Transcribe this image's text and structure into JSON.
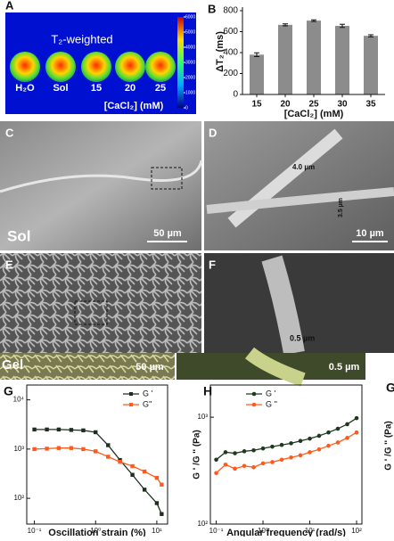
{
  "chart_data": [
    {
      "type": "colorbar",
      "label": "A",
      "title": "T₂-weighted",
      "categories": [
        "H₂O",
        "Sol",
        "15",
        "20",
        "25"
      ],
      "xlabel": "[CaCl₂] (mM)",
      "ylim": [
        0,
        6000
      ],
      "yticks": [
        0,
        1000,
        2000,
        3000,
        4000,
        5000,
        6000
      ]
    },
    {
      "type": "bar",
      "label": "B",
      "ylabel": "ΔT₂ (ms)",
      "xlabel": "[CaCl₂] (mM)",
      "categories": [
        "15",
        "20",
        "25",
        "30",
        "35"
      ],
      "values": [
        380,
        665,
        705,
        655,
        560
      ],
      "errors": [
        18,
        10,
        8,
        15,
        10
      ],
      "color": "#8c8c8c",
      "ylim": [
        0,
        800
      ],
      "yticks": [
        0,
        200,
        400,
        600,
        800
      ]
    },
    {
      "type": "line",
      "label": "G",
      "xlabel": "Oscillation strain (%)",
      "log_x": true,
      "log_y": true,
      "x": [
        0.1,
        0.16,
        0.25,
        0.4,
        0.63,
        1,
        1.6,
        2.5,
        4,
        6.3,
        10,
        12
      ],
      "series": [
        {
          "name": "G '",
          "color": "#1e2e1e",
          "marker": "square",
          "values": [
            2500,
            2500,
            2500,
            2450,
            2400,
            2200,
            1200,
            600,
            300,
            150,
            80,
            48
          ]
        },
        {
          "name": "G''",
          "color": "#ff5a1e",
          "marker": "square",
          "values": [
            1000,
            1020,
            1050,
            1050,
            1000,
            900,
            700,
            550,
            450,
            350,
            260,
            190
          ]
        }
      ],
      "xlim": [
        0.075,
        15
      ],
      "ylim": [
        30,
        20000
      ],
      "xticks": [
        {
          "value": 0.1,
          "label": "10⁻¹"
        },
        {
          "value": 1,
          "label": "10⁰"
        },
        {
          "value": 10,
          "label": "10¹"
        }
      ],
      "yticks": [
        {
          "value": 100,
          "label": "10²"
        },
        {
          "value": 1000,
          "label": "10³"
        },
        {
          "value": 10000,
          "label": "10⁴"
        }
      ]
    },
    {
      "type": "line",
      "label": "H",
      "xlabel": "Angular frequency (rad/s)",
      "ylabel": "G ' /G '' (Pa)",
      "log_x": true,
      "log_y": true,
      "x": [
        0.1,
        0.158,
        0.251,
        0.398,
        0.631,
        1,
        1.58,
        2.51,
        3.98,
        6.31,
        10,
        15.8,
        25.1,
        39.8,
        63.1,
        100
      ],
      "series": [
        {
          "name": "G '",
          "color": "#1e3a1e",
          "marker": "circle",
          "values": [
            400,
            470,
            460,
            480,
            490,
            510,
            530,
            550,
            570,
            600,
            630,
            670,
            720,
            780,
            860,
            980
          ]
        },
        {
          "name": "G ''",
          "color": "#ff5a1e",
          "marker": "circle",
          "values": [
            300,
            360,
            330,
            350,
            340,
            370,
            380,
            400,
            420,
            440,
            470,
            500,
            540,
            580,
            640,
            720
          ]
        }
      ],
      "xlim": [
        0.075,
        130
      ],
      "ylim": [
        100,
        2000
      ],
      "xticks": [
        {
          "value": 0.1,
          "label": "10⁻¹"
        },
        {
          "value": 1,
          "label": "10⁰"
        },
        {
          "value": 10,
          "label": "10¹"
        },
        {
          "value": 100,
          "label": "10²"
        }
      ],
      "yticks": [
        {
          "value": 100,
          "label": "10²"
        },
        {
          "value": 1000,
          "label": "10³"
        }
      ]
    }
  ],
  "micrographs": {
    "c": {
      "label": "C",
      "tag": "Sol",
      "scale": "50 µm"
    },
    "d": {
      "label": "D",
      "scale": "10 µm",
      "width1": "4.0 µm",
      "width2": "3.5 µm"
    },
    "e": {
      "label": "E"
    },
    "f": {
      "label": "F",
      "width": "0.5 µm"
    },
    "strip": {
      "tag": "Gel",
      "scale1": "50 µm",
      "scale2": "0.5 µm"
    },
    "right_label": "G",
    "right_ylabel": "G ' /G '' (Pa)"
  }
}
